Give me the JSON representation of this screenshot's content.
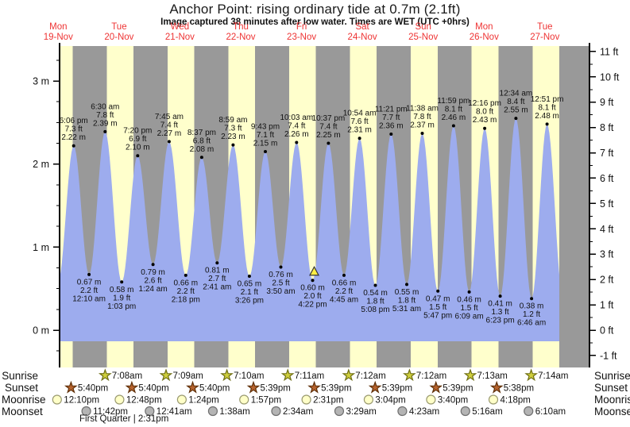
{
  "page": {
    "title": "Anchor Point: rising  ordinary tide at 0.7m (2.1ft)",
    "subtitle": "Image captured 38 minutes after low water. Times are WET (UTC +0hrs)",
    "phase_note": "First Quarter | 2:31pm"
  },
  "colors": {
    "daylight_band": "#ffffcc",
    "night_band": "#999999",
    "tide_fill": "#9dacee",
    "date_red": "#ee3333",
    "marker_yellow": "#ffee44",
    "axis_black": "#000000"
  },
  "chart_data": {
    "type": "area",
    "title": "Anchor Point: rising  ordinary tide at 0.7m (2.1ft)",
    "x_axis_days": [
      {
        "name": "Mon",
        "date": "19-Nov"
      },
      {
        "name": "Tue",
        "date": "20-Nov"
      },
      {
        "name": "Wed",
        "date": "21-Nov"
      },
      {
        "name": "Thu",
        "date": "22-Nov"
      },
      {
        "name": "Fri",
        "date": "23-Nov"
      },
      {
        "name": "Sat",
        "date": "24-Nov"
      },
      {
        "name": "Sun",
        "date": "25-Nov"
      },
      {
        "name": "Mon",
        "date": "26-Nov"
      },
      {
        "name": "Tue",
        "date": "27-Nov"
      }
    ],
    "y_axis_left": {
      "unit": "m",
      "min": 0,
      "max": 3,
      "ticks": [
        "0 m",
        "1 m",
        "2 m",
        "3 m"
      ]
    },
    "y_axis_right": {
      "unit": "ft",
      "min": -1,
      "max": 11,
      "ticks": [
        "-1 ft",
        "0 ft",
        "1 ft",
        "2 ft",
        "3 ft",
        "4 ft",
        "5 ft",
        "6 ft",
        "7 ft",
        "8 ft",
        "9 ft",
        "10 ft",
        "11 ft"
      ]
    },
    "tide_events": [
      {
        "kind": "high",
        "day": 0,
        "time": "6:06 pm",
        "ft": "7.3",
        "m": "2.22"
      },
      {
        "kind": "low",
        "day": 1,
        "time": "12:10 am",
        "ft": "2.2",
        "m": "0.67"
      },
      {
        "kind": "high",
        "day": 1,
        "time": "6:30 am",
        "ft": "7.8",
        "m": "2.39"
      },
      {
        "kind": "low",
        "day": 1,
        "time": "1:03 pm",
        "ft": "1.9",
        "m": "0.58"
      },
      {
        "kind": "high",
        "day": 1,
        "time": "7:20 pm",
        "ft": "6.9",
        "m": "2.10"
      },
      {
        "kind": "low",
        "day": 2,
        "time": "1:24 am",
        "ft": "2.6",
        "m": "0.79"
      },
      {
        "kind": "high",
        "day": 2,
        "time": "7:45 am",
        "ft": "7.4",
        "m": "2.27"
      },
      {
        "kind": "low",
        "day": 2,
        "time": "2:18 pm",
        "ft": "2.2",
        "m": "0.66"
      },
      {
        "kind": "high",
        "day": 2,
        "time": "8:37 pm",
        "ft": "6.8",
        "m": "2.08"
      },
      {
        "kind": "low",
        "day": 3,
        "time": "2:41 am",
        "ft": "2.7",
        "m": "0.81"
      },
      {
        "kind": "high",
        "day": 3,
        "time": "8:59 am",
        "ft": "7.3",
        "m": "2.23"
      },
      {
        "kind": "low",
        "day": 3,
        "time": "3:26 pm",
        "ft": "2.1",
        "m": "0.65"
      },
      {
        "kind": "high",
        "day": 3,
        "time": "9:43 pm",
        "ft": "7.1",
        "m": "2.15"
      },
      {
        "kind": "low",
        "day": 4,
        "time": "3:50 am",
        "ft": "2.5",
        "m": "0.76"
      },
      {
        "kind": "high",
        "day": 4,
        "time": "10:03 am",
        "ft": "7.4",
        "m": "2.26"
      },
      {
        "kind": "low",
        "day": 4,
        "time": "4:22 pm",
        "ft": "2.0",
        "m": "0.60"
      },
      {
        "kind": "high",
        "day": 4,
        "time": "10:37 pm",
        "ft": "7.4",
        "m": "2.25"
      },
      {
        "kind": "low",
        "day": 5,
        "time": "4:45 am",
        "ft": "2.2",
        "m": "0.66"
      },
      {
        "kind": "high",
        "day": 5,
        "time": "10:54 am",
        "ft": "7.6",
        "m": "2.31"
      },
      {
        "kind": "low",
        "day": 5,
        "time": "5:08 pm",
        "ft": "1.8",
        "m": "0.54"
      },
      {
        "kind": "high",
        "day": 5,
        "time": "11:21 pm",
        "ft": "7.7",
        "m": "2.36"
      },
      {
        "kind": "low",
        "day": 6,
        "time": "5:31 am",
        "ft": "1.8",
        "m": "0.55"
      },
      {
        "kind": "high",
        "day": 6,
        "time": "11:38 am",
        "ft": "7.8",
        "m": "2.37"
      },
      {
        "kind": "low",
        "day": 6,
        "time": "5:47 pm",
        "ft": "1.5",
        "m": "0.47"
      },
      {
        "kind": "high",
        "day": 6,
        "time": "11:59 pm",
        "ft": "8.1",
        "m": "2.46"
      },
      {
        "kind": "low",
        "day": 7,
        "time": "6:09 am",
        "ft": "1.5",
        "m": "0.46"
      },
      {
        "kind": "high",
        "day": 7,
        "time": "12:16 pm",
        "ft": "8.0",
        "m": "2.43"
      },
      {
        "kind": "low",
        "day": 7,
        "time": "6:23 pm",
        "ft": "1.3",
        "m": "0.41"
      },
      {
        "kind": "high",
        "day": 8,
        "time": "12:34 am",
        "ft": "8.4",
        "m": "2.55"
      },
      {
        "kind": "low",
        "day": 8,
        "time": "6:46 am",
        "ft": "1.2",
        "m": "0.38"
      },
      {
        "kind": "high",
        "day": 8,
        "time": "12:51 pm",
        "ft": "8.1",
        "m": "2.48"
      }
    ],
    "curve_virtual_endpoints": [
      {
        "day": 0,
        "time": "11:54 am",
        "m": 0.58
      },
      {
        "day": 8,
        "time": "7:10 pm",
        "m": 0.4
      }
    ],
    "current_marker": {
      "day": 4,
      "time": "5:00 pm",
      "m": 0.7,
      "shape": "triangle-up",
      "meaning": "rising tide now"
    }
  },
  "astro": {
    "rows": [
      {
        "label": "Sunrise",
        "icon": "sunrise-star",
        "events": [
          {
            "day": 1,
            "time": "7:08am"
          },
          {
            "day": 2,
            "time": "7:09am"
          },
          {
            "day": 3,
            "time": "7:10am"
          },
          {
            "day": 4,
            "time": "7:11am"
          },
          {
            "day": 5,
            "time": "7:12am"
          },
          {
            "day": 6,
            "time": "7:12am"
          },
          {
            "day": 7,
            "time": "7:13am"
          },
          {
            "day": 8,
            "time": "7:14am"
          }
        ]
      },
      {
        "label": "Sunset",
        "icon": "sunset-star",
        "events": [
          {
            "day": 0,
            "time": "5:40pm"
          },
          {
            "day": 1,
            "time": "5:40pm"
          },
          {
            "day": 2,
            "time": "5:40pm"
          },
          {
            "day": 3,
            "time": "5:39pm"
          },
          {
            "day": 4,
            "time": "5:39pm"
          },
          {
            "day": 5,
            "time": "5:39pm"
          },
          {
            "day": 6,
            "time": "5:39pm"
          },
          {
            "day": 7,
            "time": "5:38pm"
          }
        ]
      },
      {
        "label": "Moonrise",
        "icon": "moonrise-circle",
        "events": [
          {
            "day": 0,
            "time": "12:10pm"
          },
          {
            "day": 1,
            "time": "12:48pm"
          },
          {
            "day": 2,
            "time": "1:24pm"
          },
          {
            "day": 3,
            "time": "1:57pm"
          },
          {
            "day": 4,
            "time": "2:31pm"
          },
          {
            "day": 5,
            "time": "3:04pm"
          },
          {
            "day": 6,
            "time": "3:40pm"
          },
          {
            "day": 7,
            "time": "4:18pm"
          }
        ]
      },
      {
        "label": "Moonset",
        "icon": "moonset-circle",
        "events": [
          {
            "day": 0,
            "time": "11:42pm"
          },
          {
            "day": 2,
            "time": "12:41am"
          },
          {
            "day": 3,
            "time": "1:38am"
          },
          {
            "day": 4,
            "time": "2:34am"
          },
          {
            "day": 5,
            "time": "3:29am"
          },
          {
            "day": 6,
            "time": "4:23am"
          },
          {
            "day": 7,
            "time": "5:16am"
          },
          {
            "day": 8,
            "time": "6:10am"
          }
        ]
      }
    ]
  }
}
